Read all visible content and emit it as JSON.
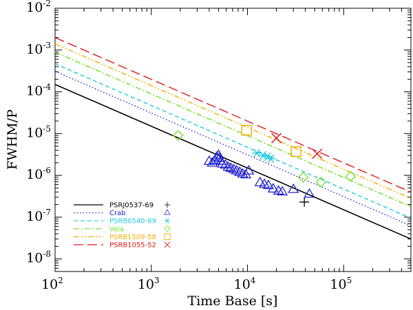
{
  "chart_data": {
    "type": "scatter",
    "xscale": "log",
    "yscale": "log",
    "xlabel": "Time Base [s]",
    "ylabel": "FWHM/P",
    "xlim": [
      100,
      500000
    ],
    "ylim": [
      5e-09,
      0.01
    ],
    "legend_position": "bottom-left",
    "x_ticks": [
      {
        "value": 100,
        "mantissa": "10",
        "exp": "2"
      },
      {
        "value": 1000,
        "mantissa": "10",
        "exp": "3"
      },
      {
        "value": 10000,
        "mantissa": "10",
        "exp": "4"
      },
      {
        "value": 100000,
        "mantissa": "10",
        "exp": "5"
      }
    ],
    "y_ticks": [
      {
        "value": 1e-08,
        "mantissa": "10",
        "exp": "-8"
      },
      {
        "value": 1e-07,
        "mantissa": "10",
        "exp": "-7"
      },
      {
        "value": 1e-06,
        "mantissa": "10",
        "exp": "-6"
      },
      {
        "value": 1e-05,
        "mantissa": "10",
        "exp": "-5"
      },
      {
        "value": 0.0001,
        "mantissa": "10",
        "exp": "-4"
      },
      {
        "value": 0.001,
        "mantissa": "10",
        "exp": "-3"
      },
      {
        "value": 0.01,
        "mantissa": "10",
        "exp": "-2"
      }
    ],
    "series": [
      {
        "name": "PSRJ0537-69",
        "color": "#000000",
        "marker": "plus",
        "dash": "solid",
        "line": {
          "x": [
            100,
            500000
          ],
          "y": [
            0.00015,
            3e-08
          ]
        },
        "points": [
          [
            39000,
            2.3e-07
          ]
        ]
      },
      {
        "name": "Crab",
        "color": "#1f1fd0",
        "marker": "triangle",
        "dash": "dotted",
        "line": {
          "x": [
            100,
            500000
          ],
          "y": [
            0.00031,
            6.2e-08
          ]
        },
        "points": [
          [
            4000,
            2.2e-06
          ],
          [
            4300,
            2e-06
          ],
          [
            4600,
            2.3e-06
          ],
          [
            4800,
            2.8e-06
          ],
          [
            5000,
            3.1e-06
          ],
          [
            5100,
            2.6e-06
          ],
          [
            5300,
            2.2e-06
          ],
          [
            5500,
            1.9e-06
          ],
          [
            5900,
            1.8e-06
          ],
          [
            6300,
            1.6e-06
          ],
          [
            6700,
            1.5e-06
          ],
          [
            7200,
            1.4e-06
          ],
          [
            7700,
            1.3e-06
          ],
          [
            8300,
            1.2e-06
          ],
          [
            8900,
            1.1e-06
          ],
          [
            9600,
            1.05e-06
          ],
          [
            10300,
            1.3e-06
          ],
          [
            13500,
            6.8e-07
          ],
          [
            15000,
            6.2e-07
          ],
          [
            16500,
            5.8e-07
          ],
          [
            18500,
            4.8e-07
          ],
          [
            21000,
            4.3e-07
          ],
          [
            23000,
            4.1e-07
          ],
          [
            30000,
            4.7e-07
          ],
          [
            44000,
            3.6e-07
          ]
        ]
      },
      {
        "name": "PSRB0540-69",
        "color": "#1ec8e0",
        "marker": "asterisk",
        "dash": "dashed",
        "line": {
          "x": [
            100,
            500000
          ],
          "y": [
            0.00047,
            9.4e-08
          ]
        },
        "points": [
          [
            12500,
            3.4e-06
          ],
          [
            14500,
            3e-06
          ],
          [
            16200,
            2.8e-06
          ],
          [
            17500,
            2.5e-06
          ]
        ]
      },
      {
        "name": "Vela",
        "color": "#6ee020",
        "marker": "diamond",
        "dash": "dashdot",
        "line": {
          "x": [
            100,
            500000
          ],
          "y": [
            0.00089,
            1.78e-07
          ]
        },
        "points": [
          [
            1900,
            9e-06
          ],
          [
            38000,
            9e-07
          ],
          [
            58000,
            6.9e-07
          ],
          [
            118000,
            9.5e-07
          ]
        ]
      },
      {
        "name": "PSRB1509-58",
        "color": "#f0b000",
        "marker": "square",
        "dash": "dashdotdot",
        "line": {
          "x": [
            100,
            500000
          ],
          "y": [
            0.00141,
            2.8e-07
          ]
        },
        "points": [
          [
            9800,
            1.2e-05
          ],
          [
            32000,
            3.7e-06
          ]
        ]
      },
      {
        "name": "PSRB1055-52",
        "color": "#e01818",
        "marker": "cross",
        "dash": "longdash",
        "line": {
          "x": [
            100,
            500000
          ],
          "y": [
            0.00199,
            3.98e-07
          ]
        },
        "points": [
          [
            20000,
            7.8e-06
          ],
          [
            53000,
            3.3e-06
          ]
        ]
      }
    ]
  }
}
